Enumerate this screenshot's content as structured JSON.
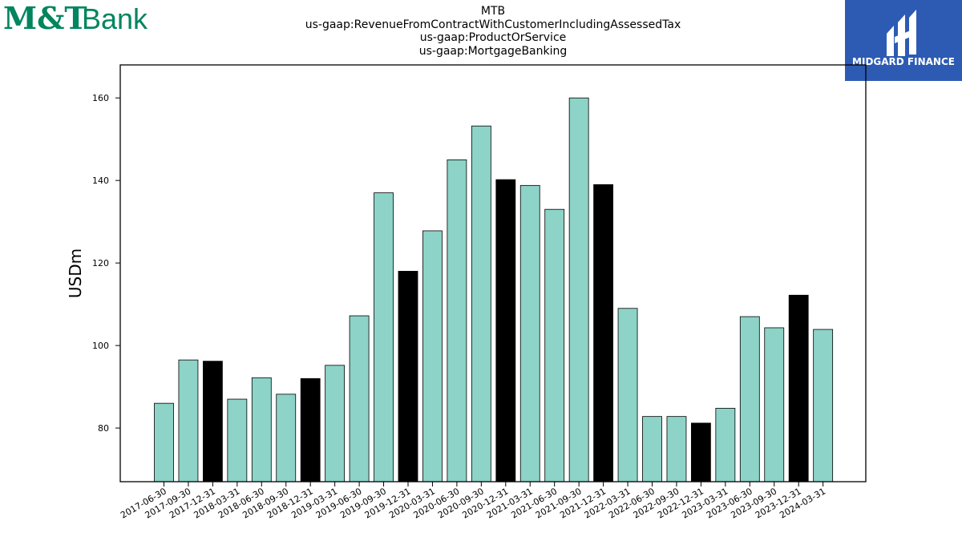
{
  "logos": {
    "left": {
      "brand": "M&T",
      "word": "Bank",
      "color": "#00855f"
    },
    "right": {
      "text": "MIDGARD FINANCE",
      "bg_color": "#2d5bb3"
    }
  },
  "titles": [
    "MTB",
    "us-gaap:RevenueFromContractWithCustomerIncludingAssessedTax",
    "us-gaap:ProductOrService",
    "us-gaap:MortgageBanking"
  ],
  "chart_data": {
    "type": "bar",
    "categories": [
      "2017-06-30",
      "2017-09-30",
      "2017-12-31",
      "2018-03-31",
      "2018-06-30",
      "2018-09-30",
      "2018-12-31",
      "2019-03-31",
      "2019-06-30",
      "2019-09-30",
      "2019-12-31",
      "2020-03-31",
      "2020-06-30",
      "2020-09-30",
      "2020-12-31",
      "2021-03-31",
      "2021-06-30",
      "2021-09-30",
      "2021-12-31",
      "2022-03-31",
      "2022-06-30",
      "2022-09-30",
      "2022-12-31",
      "2023-03-31",
      "2023-06-30",
      "2023-09-30",
      "2023-12-31",
      "2024-03-31"
    ],
    "values": [
      86,
      96.5,
      96.2,
      87,
      92.2,
      88.2,
      92,
      95.2,
      107.2,
      137,
      118,
      127.8,
      145,
      153.2,
      140.2,
      138.8,
      133,
      160,
      139,
      109,
      82.8,
      82.8,
      81.2,
      84.8,
      107,
      104.3,
      112.2,
      103.9
    ],
    "highlight": [
      false,
      false,
      true,
      false,
      false,
      false,
      true,
      false,
      false,
      false,
      true,
      false,
      false,
      false,
      true,
      false,
      false,
      false,
      true,
      false,
      false,
      false,
      true,
      false,
      false,
      false,
      true,
      false
    ],
    "colors": {
      "normal": "#8dd3c7",
      "highlight": "#000000"
    },
    "ylabel": "USDm",
    "yticks": [
      80,
      100,
      120,
      140,
      160
    ],
    "ylim": [
      67,
      168
    ],
    "grid": false
  }
}
